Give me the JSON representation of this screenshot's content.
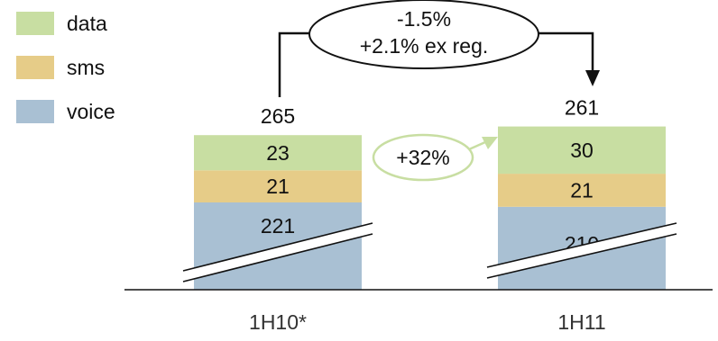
{
  "chart_data": {
    "type": "bar",
    "stacked": true,
    "categories": [
      "1H10*",
      "1H11"
    ],
    "series": [
      {
        "name": "voice",
        "values": [
          221,
          210
        ]
      },
      {
        "name": "sms",
        "values": [
          21,
          21
        ]
      },
      {
        "name": "data",
        "values": [
          23,
          30
        ]
      }
    ],
    "totals": [
      265,
      261
    ],
    "axis_break": true,
    "legend_position": "top-left",
    "annotations": {
      "total_change": "-1.5%",
      "total_change_ex_reg": "+2.1% ex reg.",
      "data_growth": "+32%"
    }
  },
  "colors": {
    "voice": "#a9c0d3",
    "sms": "#e6cc88",
    "data": "#c8dea2",
    "growth_arrow": "#c8dea2",
    "text": "#111111"
  },
  "legend": [
    {
      "key": "data",
      "label": "data"
    },
    {
      "key": "sms",
      "label": "sms"
    },
    {
      "key": "voice",
      "label": "voice"
    }
  ]
}
